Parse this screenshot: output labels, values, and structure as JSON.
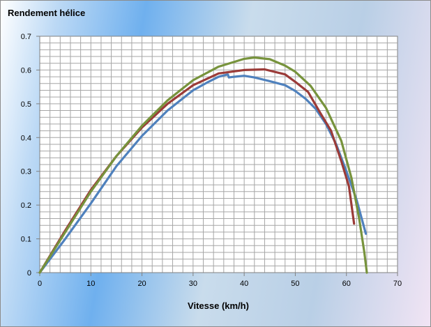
{
  "chart_data": {
    "type": "line",
    "title": "Rendement hélice",
    "xlabel": "Vitesse (km/h)",
    "ylabel": "",
    "xlim": [
      0,
      70
    ],
    "ylim": [
      0,
      0.7
    ],
    "x_ticks": [
      "0",
      "10",
      "20",
      "30",
      "40",
      "50",
      "60",
      "70"
    ],
    "y_ticks": [
      "0",
      "0.1",
      "0.2",
      "0.3",
      "0.4",
      "0.5",
      "0.6",
      "0.7"
    ],
    "grid": true,
    "legend": "none",
    "series": [
      {
        "color": "#4f81bd",
        "points": [
          [
            0,
            0
          ],
          [
            5,
            0.1
          ],
          [
            10,
            0.205
          ],
          [
            15,
            0.315
          ],
          [
            20,
            0.405
          ],
          [
            25,
            0.48
          ],
          [
            30,
            0.54
          ],
          [
            33,
            0.565
          ],
          [
            35,
            0.58
          ],
          [
            36.8,
            0.587
          ],
          [
            37,
            0.578
          ],
          [
            38,
            0.58
          ],
          [
            40,
            0.583
          ],
          [
            42,
            0.578
          ],
          [
            45,
            0.567
          ],
          [
            48,
            0.555
          ],
          [
            50,
            0.538
          ],
          [
            52,
            0.515
          ],
          [
            54,
            0.485
          ],
          [
            56,
            0.44
          ],
          [
            58,
            0.38
          ],
          [
            60,
            0.3
          ],
          [
            62,
            0.215
          ],
          [
            63.8,
            0.115
          ]
        ]
      },
      {
        "color": "#9b3b38",
        "points": [
          [
            0,
            0
          ],
          [
            5,
            0.125
          ],
          [
            10,
            0.245
          ],
          [
            15,
            0.345
          ],
          [
            20,
            0.43
          ],
          [
            25,
            0.5
          ],
          [
            30,
            0.555
          ],
          [
            35,
            0.59
          ],
          [
            40,
            0.6
          ],
          [
            44,
            0.602
          ],
          [
            48,
            0.587
          ],
          [
            50,
            0.565
          ],
          [
            52.5,
            0.535
          ],
          [
            55,
            0.47
          ],
          [
            57,
            0.42
          ],
          [
            59,
            0.33
          ],
          [
            60.5,
            0.255
          ],
          [
            61.5,
            0.145
          ]
        ]
      },
      {
        "color": "#77933c",
        "points": [
          [
            0,
            0
          ],
          [
            5,
            0.12
          ],
          [
            10,
            0.24
          ],
          [
            15,
            0.345
          ],
          [
            20,
            0.435
          ],
          [
            25,
            0.51
          ],
          [
            30,
            0.57
          ],
          [
            35,
            0.61
          ],
          [
            40,
            0.633
          ],
          [
            42,
            0.637
          ],
          [
            45,
            0.632
          ],
          [
            48,
            0.613
          ],
          [
            50,
            0.595
          ],
          [
            53,
            0.553
          ],
          [
            56,
            0.488
          ],
          [
            59,
            0.39
          ],
          [
            61,
            0.28
          ],
          [
            62.5,
            0.16
          ],
          [
            63.5,
            0.06
          ],
          [
            64,
            0
          ]
        ]
      }
    ]
  }
}
